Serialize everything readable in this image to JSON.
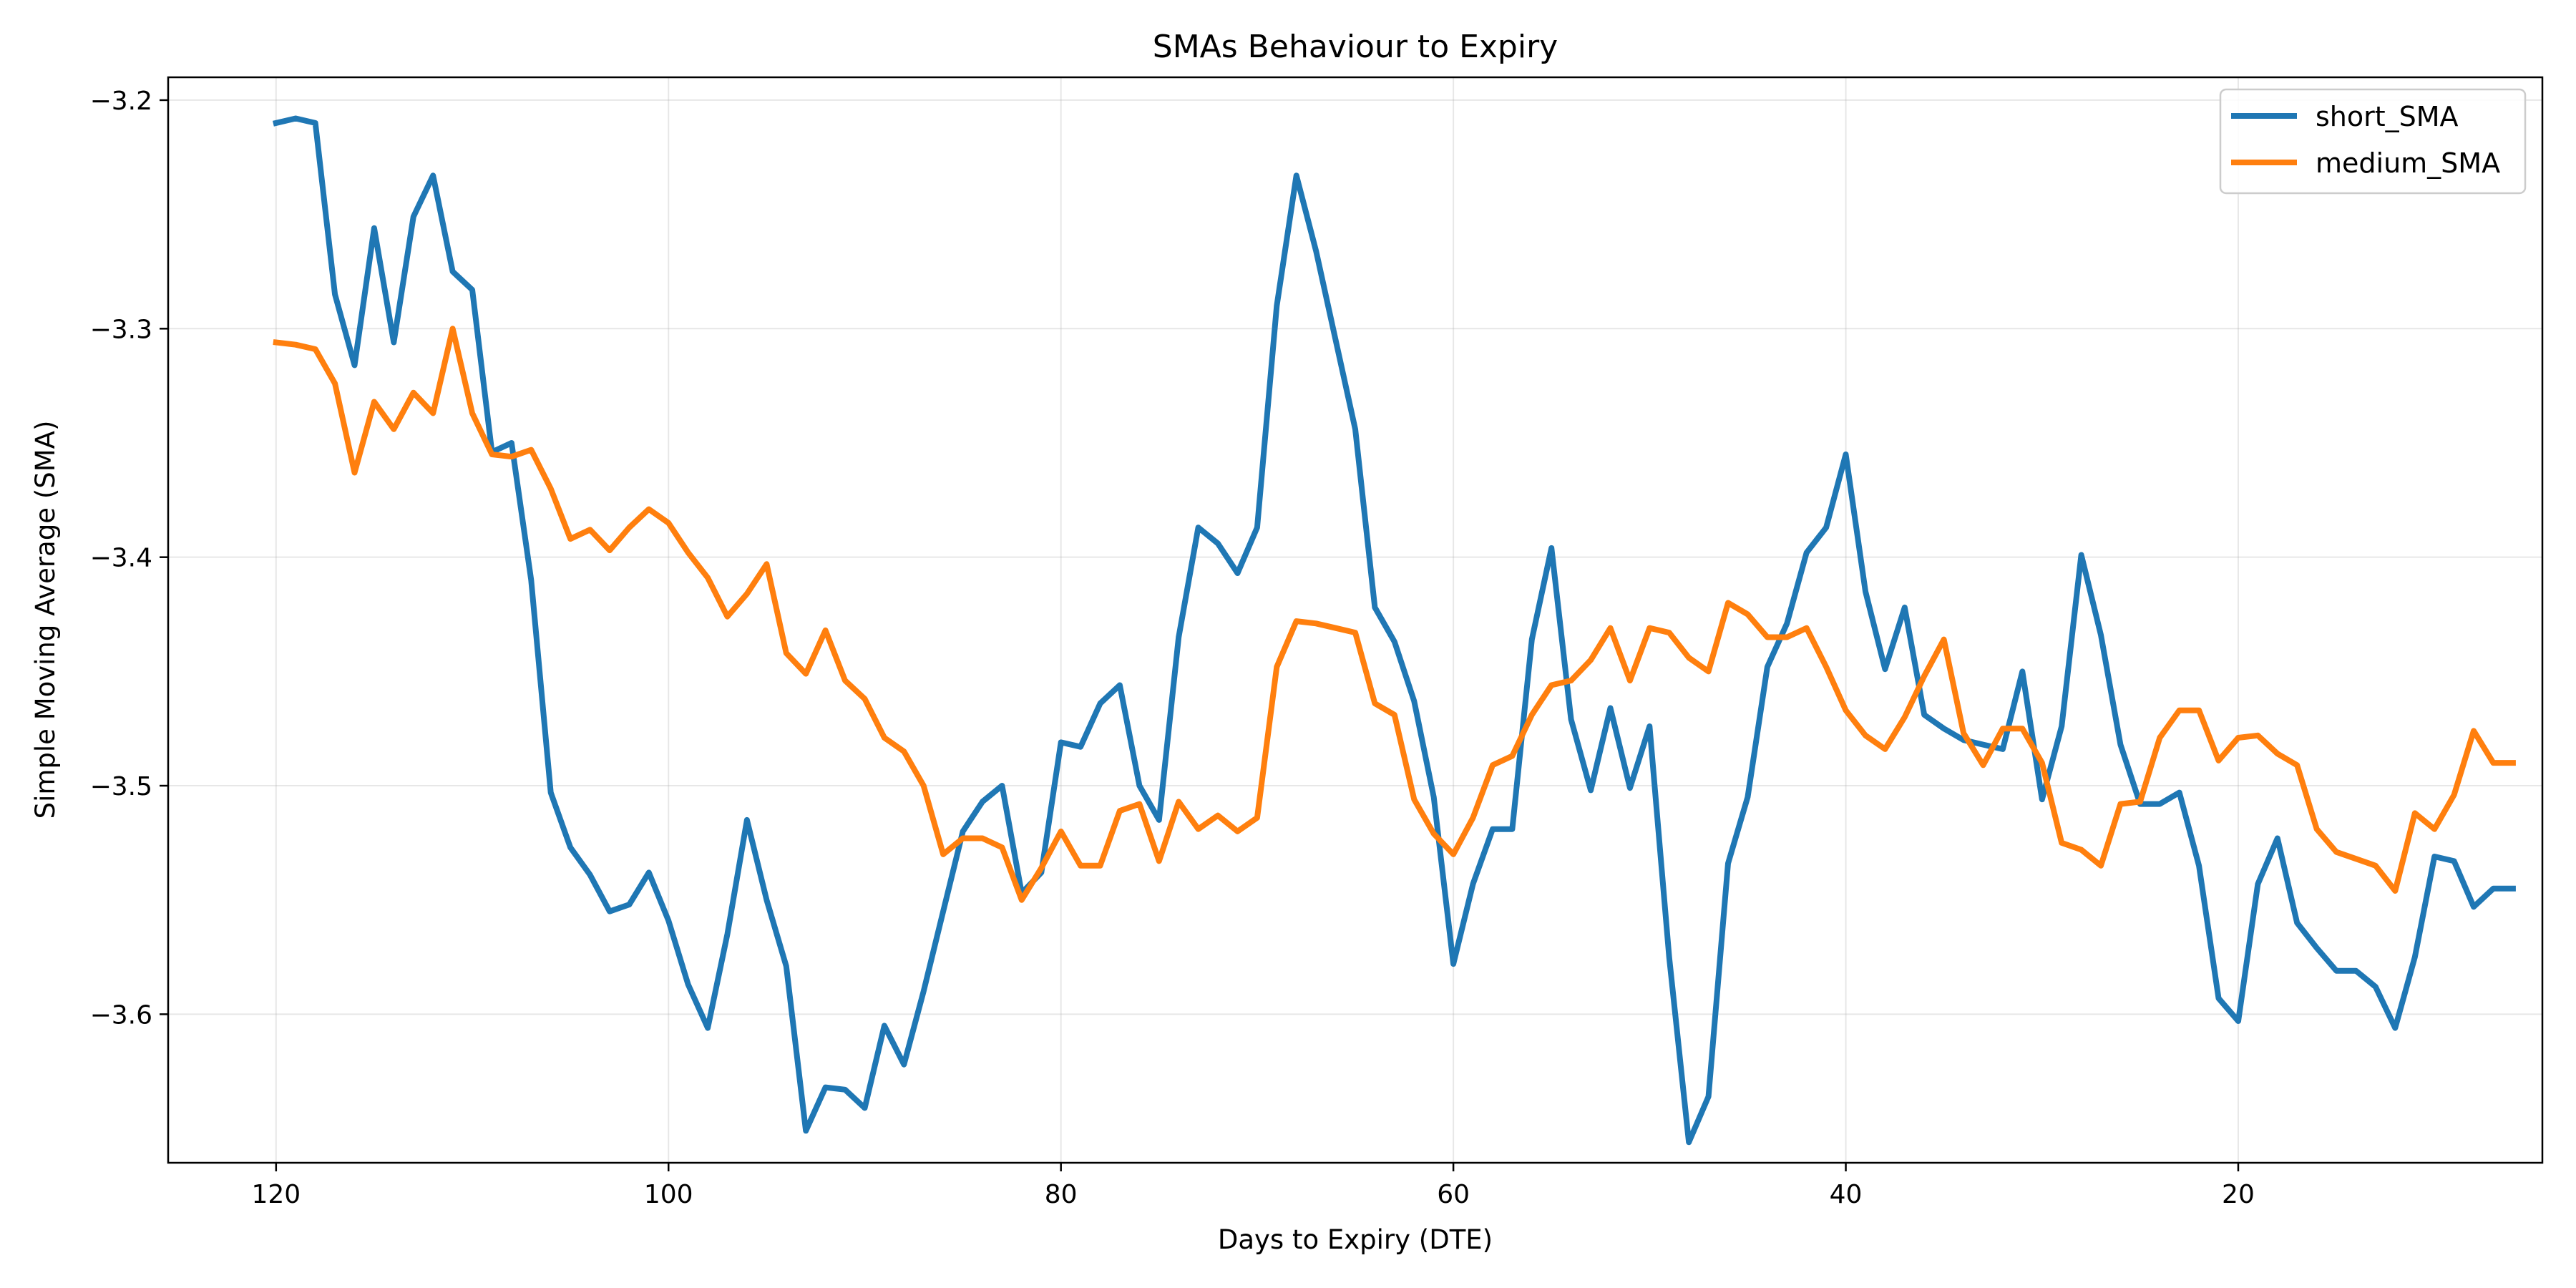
{
  "chart_data": {
    "type": "line",
    "title": "SMAs Behaviour to Expiry",
    "xlabel": "Days to Expiry (DTE)",
    "ylabel": "Simple Moving Average (SMA)",
    "x_reversed": true,
    "xlim": [
      125.5,
      4.5
    ],
    "ylim": [
      -3.665,
      -3.19
    ],
    "xticks": [
      120,
      100,
      80,
      60,
      40,
      20
    ],
    "yticks": [
      -3.2,
      -3.3,
      -3.4,
      -3.5,
      -3.6
    ],
    "xtick_labels": [
      "120",
      "100",
      "80",
      "60",
      "40",
      "20"
    ],
    "ytick_labels": [
      "−3.2",
      "−3.3",
      "−3.4",
      "−3.5",
      "−3.6"
    ],
    "grid": true,
    "legend_position": "top-right",
    "x": [
      120,
      119,
      118,
      117,
      116,
      115,
      114,
      113,
      112,
      111,
      110,
      109,
      108,
      107,
      106,
      105,
      104,
      103,
      102,
      101,
      100,
      99,
      98,
      97,
      96,
      95,
      94,
      93,
      92,
      91,
      90,
      89,
      88,
      87,
      86,
      85,
      84,
      83,
      82,
      81,
      80,
      79,
      78,
      77,
      76,
      75,
      74,
      73,
      72,
      71,
      70,
      69,
      68,
      67,
      66,
      65,
      64,
      63,
      62,
      61,
      60,
      59,
      58,
      57,
      56,
      55,
      54,
      53,
      52,
      51,
      50,
      49,
      48,
      47,
      46,
      45,
      44,
      43,
      42,
      41,
      40,
      39,
      38,
      37,
      36,
      35,
      34,
      33,
      32,
      31,
      30,
      29,
      28,
      27,
      26,
      25,
      24,
      23,
      22,
      21,
      20,
      19,
      18,
      17,
      16,
      15,
      14,
      13,
      12,
      11,
      10,
      9,
      8,
      7,
      6
    ],
    "series": [
      {
        "name": "short_SMA",
        "color": "#1f77b4",
        "values": [
          -3.21,
          -3.208,
          -3.21,
          -3.285,
          -3.316,
          -3.256,
          -3.306,
          -3.251,
          -3.233,
          -3.275,
          -3.283,
          -3.354,
          -3.35,
          -3.41,
          -3.503,
          -3.527,
          -3.539,
          -3.555,
          -3.552,
          -3.538,
          -3.559,
          -3.587,
          -3.606,
          -3.565,
          -3.515,
          -3.55,
          -3.579,
          -3.651,
          -3.632,
          -3.633,
          -3.641,
          -3.605,
          -3.622,
          -3.59,
          -3.555,
          -3.52,
          -3.507,
          -3.5,
          -3.547,
          -3.538,
          -3.481,
          -3.483,
          -3.464,
          -3.456,
          -3.5,
          -3.515,
          -3.435,
          -3.387,
          -3.394,
          -3.407,
          -3.387,
          -3.29,
          -3.233,
          -3.266,
          -3.305,
          -3.344,
          -3.422,
          -3.437,
          -3.463,
          -3.505,
          -3.578,
          -3.543,
          -3.519,
          -3.519,
          -3.436,
          -3.396,
          -3.471,
          -3.502,
          -3.466,
          -3.501,
          -3.474,
          -3.575,
          -3.656,
          -3.636,
          -3.534,
          -3.505,
          -3.448,
          -3.429,
          -3.398,
          -3.387,
          -3.355,
          -3.415,
          -3.449,
          -3.422,
          -3.469,
          -3.475,
          -3.48,
          -3.482,
          -3.484,
          -3.45,
          -3.506,
          -3.474,
          -3.399,
          -3.434,
          -3.482,
          -3.508,
          -3.508,
          -3.503,
          -3.535,
          -3.593,
          -3.603,
          -3.543,
          -3.523,
          -3.56,
          -3.571,
          -3.581,
          -3.581,
          -3.588,
          -3.606,
          -3.575,
          -3.531,
          -3.533,
          -3.553,
          -3.545,
          -3.545
        ]
      },
      {
        "name": "medium_SMA",
        "color": "#ff7f0e",
        "values": [
          -3.306,
          -3.307,
          -3.309,
          -3.324,
          -3.363,
          -3.332,
          -3.344,
          -3.328,
          -3.337,
          -3.3,
          -3.337,
          -3.355,
          -3.356,
          -3.353,
          -3.37,
          -3.392,
          -3.388,
          -3.397,
          -3.387,
          -3.379,
          -3.385,
          -3.398,
          -3.409,
          -3.426,
          -3.416,
          -3.403,
          -3.442,
          -3.451,
          -3.432,
          -3.454,
          -3.462,
          -3.479,
          -3.485,
          -3.5,
          -3.53,
          -3.523,
          -3.523,
          -3.527,
          -3.55,
          -3.536,
          -3.52,
          -3.535,
          -3.535,
          -3.511,
          -3.508,
          -3.533,
          -3.507,
          -3.519,
          -3.513,
          -3.52,
          -3.514,
          -3.448,
          -3.428,
          -3.429,
          -3.431,
          -3.433,
          -3.464,
          -3.469,
          -3.506,
          -3.521,
          -3.53,
          -3.514,
          -3.491,
          -3.487,
          -3.469,
          -3.456,
          -3.454,
          -3.445,
          -3.431,
          -3.454,
          -3.431,
          -3.433,
          -3.444,
          -3.45,
          -3.42,
          -3.425,
          -3.435,
          -3.435,
          -3.431,
          -3.448,
          -3.467,
          -3.478,
          -3.484,
          -3.47,
          -3.452,
          -3.436,
          -3.477,
          -3.491,
          -3.475,
          -3.475,
          -3.49,
          -3.525,
          -3.528,
          -3.535,
          -3.508,
          -3.507,
          -3.479,
          -3.467,
          -3.467,
          -3.489,
          -3.479,
          -3.478,
          -3.486,
          -3.491,
          -3.519,
          -3.529,
          -3.532,
          -3.535,
          -3.546,
          -3.512,
          -3.519,
          -3.504,
          -3.476,
          -3.49,
          -3.49
        ]
      }
    ]
  }
}
